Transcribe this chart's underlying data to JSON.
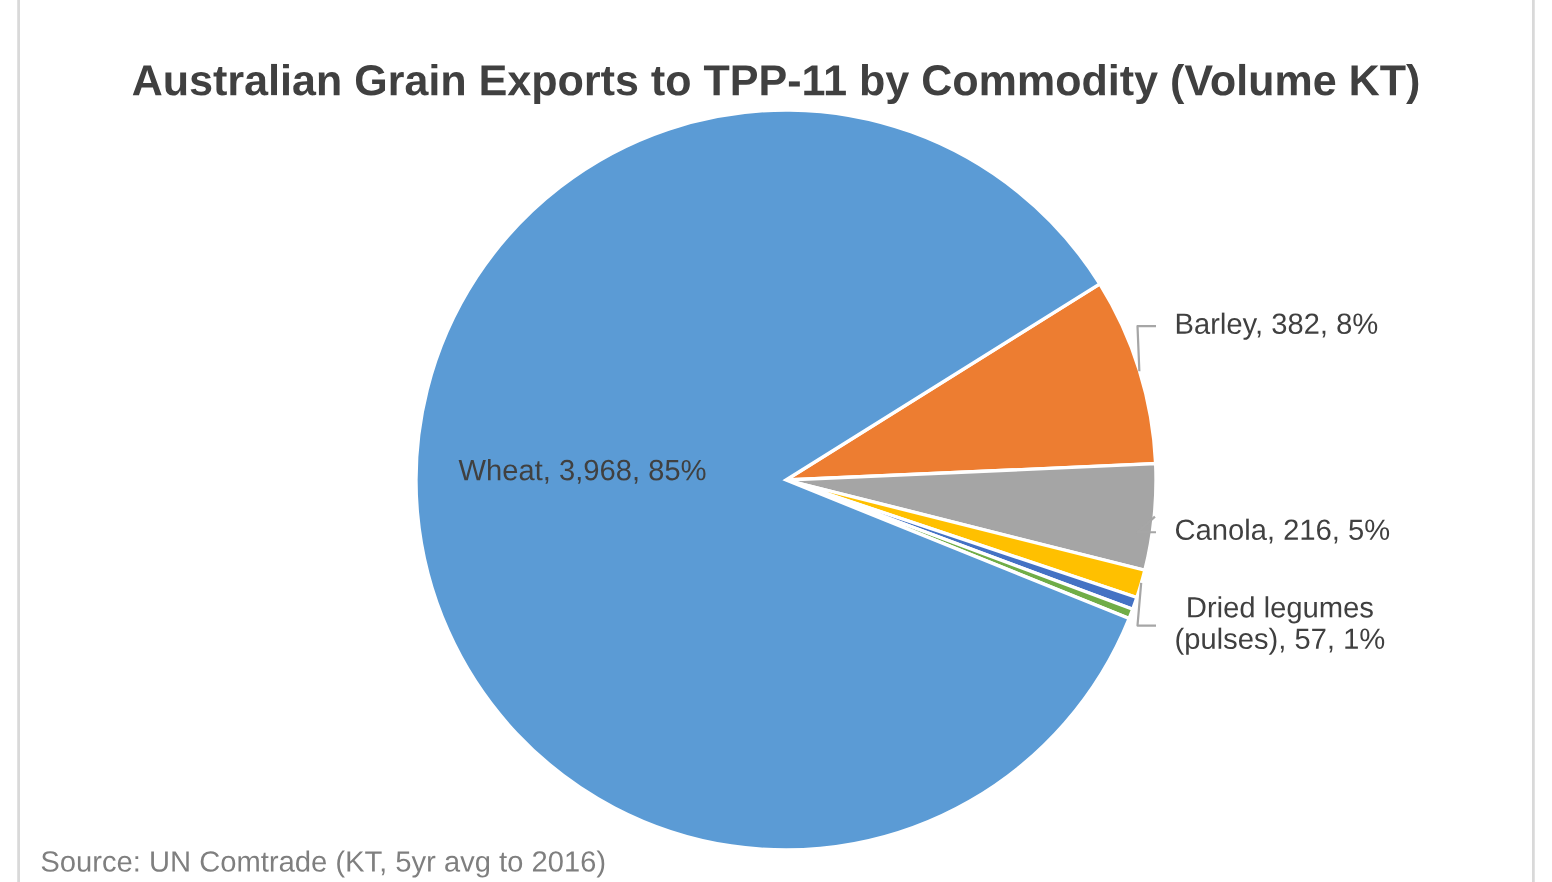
{
  "chart_data": {
    "type": "pie",
    "title": "Australian Grain Exports to TPP-11 by Commodity (Volume KT)",
    "categories": [
      "Barley",
      "Canola",
      "Dried legumes (pulses)",
      null,
      null,
      "Wheat"
    ],
    "values": [
      382,
      216,
      57,
      25,
      20,
      3968
    ],
    "colors": [
      "#ed7d31",
      "#a5a5a5",
      "#ffc000",
      "#4472c4",
      "#70ad47",
      "#5b9bd5"
    ],
    "value_labels": [
      "382, 8%",
      "216, 5%",
      "57, 1%",
      null,
      null,
      "3,968, 85%"
    ],
    "annotations": [
      "Source: UN Comtrade (KT, 5yr avg to 2016)"
    ]
  }
}
